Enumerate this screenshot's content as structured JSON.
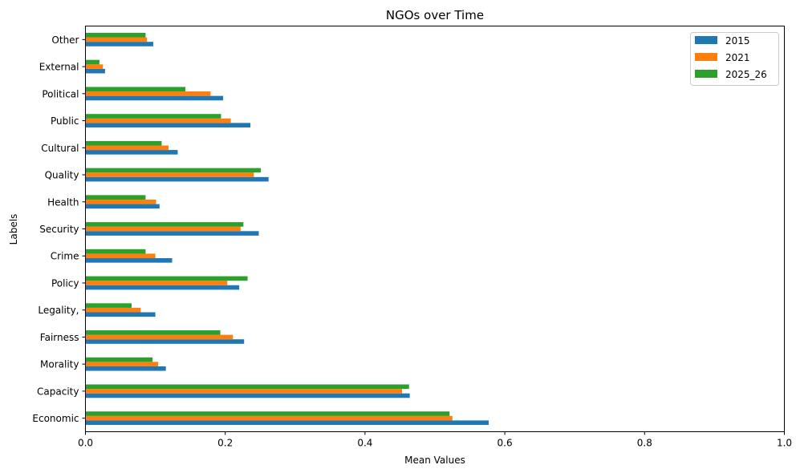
{
  "chart_data": {
    "type": "bar",
    "orientation": "horizontal",
    "title": "NGOs over Time",
    "xlabel": "Mean Values",
    "ylabel": "Labels",
    "xlim": [
      0,
      1.0
    ],
    "x_ticks": [
      "0.0",
      "0.2",
      "0.4",
      "0.6",
      "0.8",
      "1.0"
    ],
    "grid": false,
    "legend_position": "top-right",
    "categories": [
      "Economic",
      "Capacity",
      "Morality",
      "Fairness",
      "Legality,",
      "Policy",
      "Crime",
      "Security",
      "Health",
      "Quality",
      "Cultural",
      "Public",
      "Political",
      "External",
      "Other"
    ],
    "series": [
      {
        "name": "2015",
        "color": "#1f77b4",
        "values": [
          0.577,
          0.464,
          0.115,
          0.227,
          0.1,
          0.22,
          0.124,
          0.248,
          0.106,
          0.262,
          0.132,
          0.236,
          0.197,
          0.028,
          0.097
        ]
      },
      {
        "name": "2021",
        "color": "#ff7f0e",
        "values": [
          0.525,
          0.453,
          0.104,
          0.211,
          0.079,
          0.203,
          0.1,
          0.222,
          0.101,
          0.241,
          0.119,
          0.208,
          0.179,
          0.025,
          0.088
        ]
      },
      {
        "name": "2025_26",
        "color": "#2ca02c",
        "values": [
          0.521,
          0.463,
          0.096,
          0.193,
          0.066,
          0.232,
          0.086,
          0.226,
          0.086,
          0.251,
          0.109,
          0.194,
          0.143,
          0.02,
          0.086
        ]
      }
    ]
  }
}
